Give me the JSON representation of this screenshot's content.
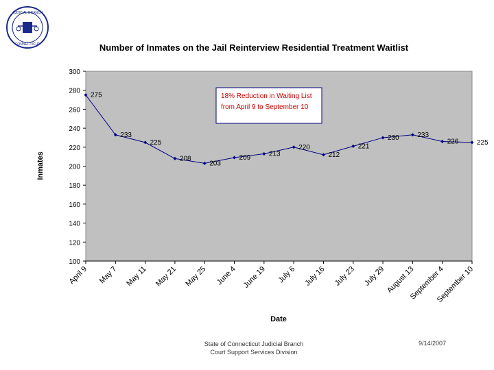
{
  "chart_data": {
    "type": "line",
    "title": "Number of Inmates  on the Jail Reinterview Residential Treatment  Waitlist",
    "xlabel": "Date",
    "ylabel": "Inmates",
    "ylim": [
      100,
      300
    ],
    "yticks": [
      100,
      120,
      140,
      160,
      180,
      200,
      220,
      240,
      260,
      280,
      300
    ],
    "categories": [
      "April 9",
      "May 7",
      "May 11",
      "May 21",
      "May 25",
      "June 4",
      "June 19",
      "July 6",
      "July 16",
      "July 23",
      "July 29",
      "August 13",
      "September 4",
      "September 10"
    ],
    "series": [
      {
        "name": "Inmates",
        "values": [
          275,
          233,
          225,
          208,
          203,
          209,
          213,
          220,
          212,
          221,
          230,
          233,
          226,
          225
        ]
      }
    ],
    "annotation": [
      "18% Reduction in Waiting List",
      "from April 9 to September 10"
    ],
    "grid": false,
    "plot_background": "#c0c0c0",
    "line_color": "#000080"
  },
  "footer": {
    "org_line1": "State of Connecticut Judicial Branch",
    "org_line2": "Court Support Services Division",
    "date": "9/14/2007"
  },
  "colors": {
    "annotation_text": "#cc0000",
    "seal_blue": "#1a2a8a"
  }
}
